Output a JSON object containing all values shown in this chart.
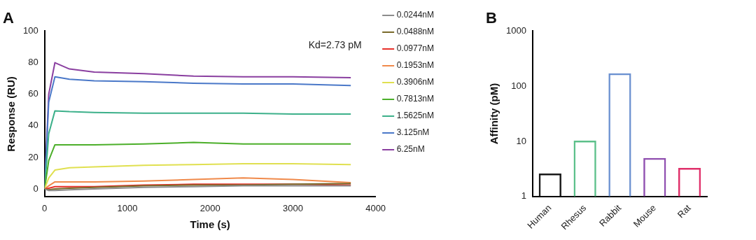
{
  "chart_data": [
    {
      "type": "line",
      "title": "A",
      "xlabel": "Time (s)",
      "ylabel": "Response (RU)",
      "annotations": [
        "Kd=2.73 pM"
      ],
      "legend": "right",
      "marker": "none",
      "x": [
        0,
        50,
        125,
        300,
        600,
        1200,
        1800,
        2400,
        3000,
        3700
      ],
      "xlim": [
        0,
        4000
      ],
      "xticks": [
        0,
        1000,
        2000,
        3000,
        4000
      ],
      "ylim": [
        -5,
        100
      ],
      "yticks": [
        0,
        20,
        40,
        60,
        80,
        100
      ],
      "series": [
        {
          "name": "0.0244nM",
          "color": "#8c8c8c",
          "values": [
            0,
            -1,
            -1,
            -0.5,
            0,
            1,
            1.5,
            2,
            2,
            2
          ]
        },
        {
          "name": "0.0488nM",
          "color": "#7a6a2a",
          "values": [
            0,
            -0.5,
            0,
            0.5,
            1,
            2,
            2.5,
            2.5,
            3,
            3.5
          ]
        },
        {
          "name": "0.0977nM",
          "color": "#e8302a",
          "values": [
            0,
            0.5,
            1.5,
            1.5,
            1.5,
            2.5,
            3,
            3,
            3,
            2.5
          ]
        },
        {
          "name": "0.1953nM",
          "color": "#f08a4b",
          "values": [
            0,
            2,
            4.5,
            4.5,
            4.5,
            5,
            6,
            7,
            6,
            4
          ]
        },
        {
          "name": "0.3906nM",
          "color": "#e0e050",
          "values": [
            0,
            7,
            12,
            13.5,
            14,
            15,
            15.5,
            16,
            16,
            15.5
          ]
        },
        {
          "name": "0.7813nM",
          "color": "#4caf2a",
          "values": [
            0,
            18,
            28,
            28,
            28,
            28.5,
            29.5,
            28.5,
            28.5,
            28.5
          ]
        },
        {
          "name": "1.5625nM",
          "color": "#3cb08a",
          "values": [
            0,
            35,
            49.5,
            49,
            48.5,
            48,
            48,
            48,
            47.5,
            47.5
          ]
        },
        {
          "name": "3.125nM",
          "color": "#4a78c8",
          "values": [
            0,
            55,
            71,
            69.5,
            68.5,
            68,
            67,
            66.5,
            66.5,
            65.5
          ]
        },
        {
          "name": "6.25nM",
          "color": "#8a3fa0",
          "values": [
            0,
            60,
            80,
            76,
            74,
            73,
            71.5,
            71,
            71,
            70.5
          ]
        }
      ]
    },
    {
      "type": "bar",
      "title": "B",
      "ylabel": "Affinity (pM)",
      "log": true,
      "legend": false,
      "categories": [
        "Human",
        "Rhesus",
        "Rabbit",
        "Mouse",
        "Rat"
      ],
      "values": [
        2.6,
        10.3,
        171,
        5,
        3.3
      ],
      "colors": [
        "#1a1a1a",
        "#5cc08a",
        "#6a90d0",
        "#9050b0",
        "#e0306a"
      ],
      "ylim": [
        1,
        1000
      ],
      "yticks": [
        1,
        10,
        100,
        1000
      ]
    }
  ]
}
